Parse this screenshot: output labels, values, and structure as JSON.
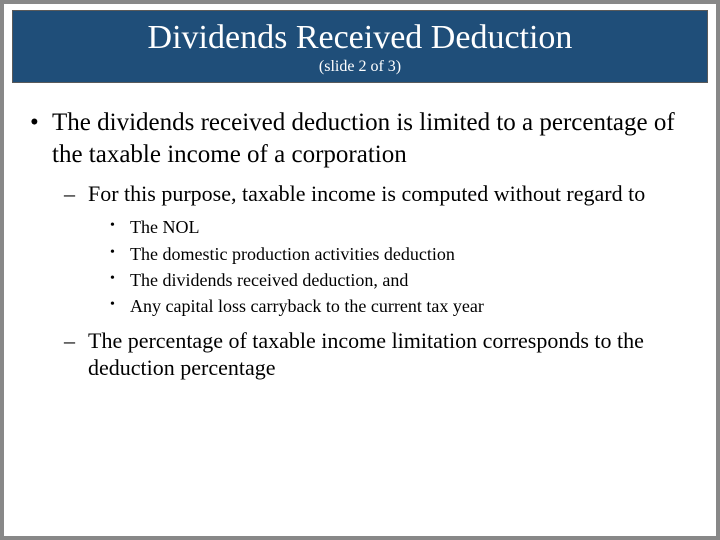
{
  "header": {
    "title": "Dividends Received Deduction",
    "subtitle": "(slide 2 of 3)",
    "background_color": "#1f4e79",
    "text_color": "#ffffff",
    "title_fontsize": 34,
    "subtitle_fontsize": 16
  },
  "body": {
    "text_color": "#000000",
    "level1_fontsize": 25,
    "level2_fontsize": 22,
    "level3_fontsize": 18,
    "level1_bullet": "•",
    "level2_bullet": "–",
    "level3_bullet": "•",
    "items": {
      "p1": "The dividends received deduction is limited to a percentage of the taxable income of a corporation",
      "p1_1": " For this purpose, taxable income is computed without regard to",
      "p1_1_1": "The NOL",
      "p1_1_2": "The domestic production activities deduction",
      "p1_1_3": "The dividends received deduction, and",
      "p1_1_4": "Any capital loss carryback to the current tax year",
      "p1_2": "The percentage of taxable income limitation corresponds to the deduction percentage"
    }
  },
  "slide_border_color": "#888888",
  "background_color": "#ffffff"
}
